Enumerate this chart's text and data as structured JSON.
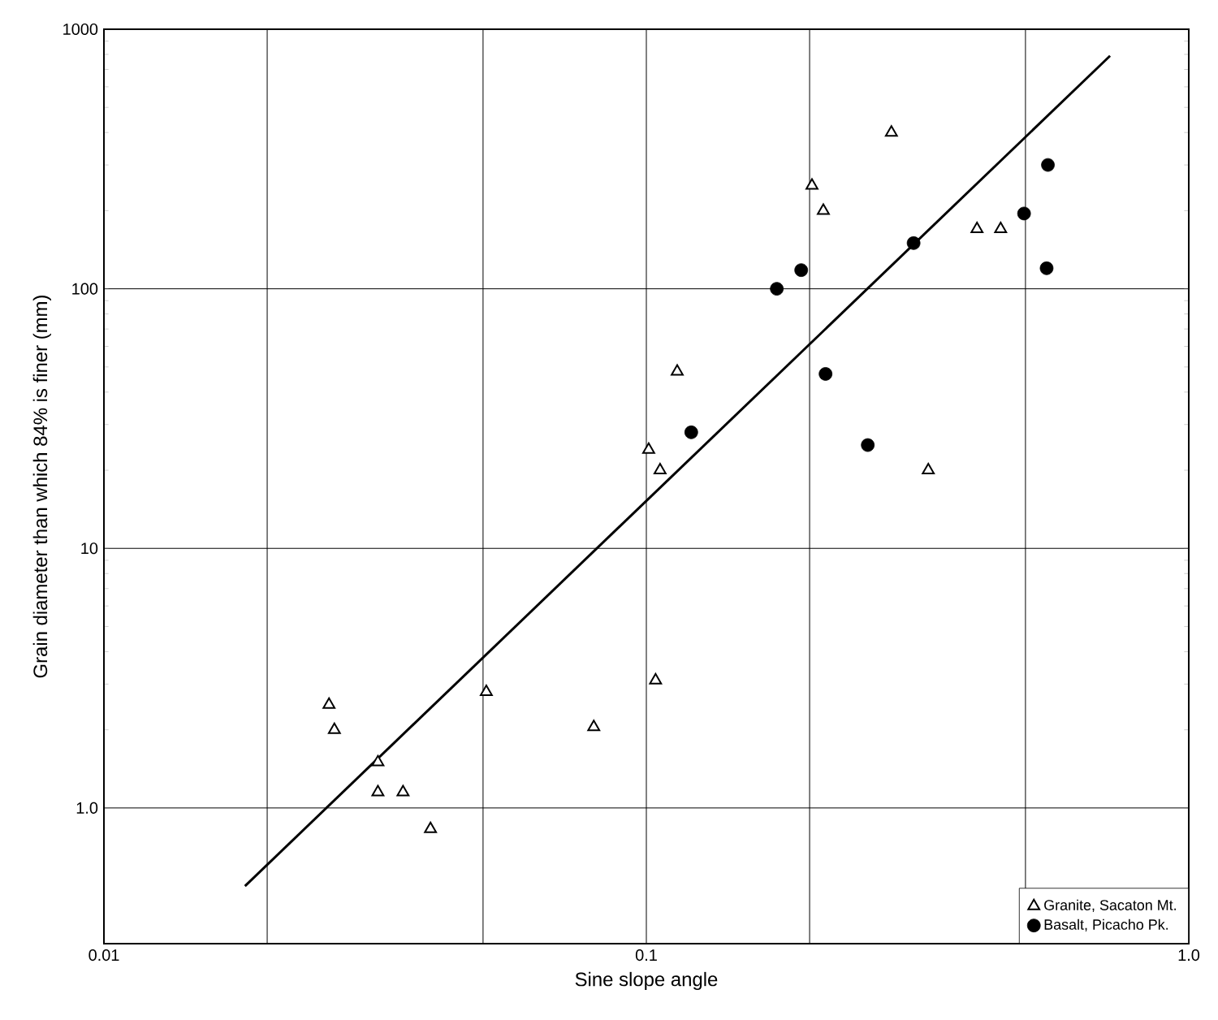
{
  "chart_data": {
    "type": "scatter",
    "xlabel": "Sine slope angle",
    "ylabel": "Grain diameter than which 84% is finer (mm)",
    "log": "xy",
    "grid": true,
    "legend": "bottom right",
    "xlim": [
      0.01,
      1
    ],
    "ylim": [
      0.3,
      1000
    ],
    "xticks": [
      0.01,
      {
        "value": 0.02,
        "label": null
      },
      {
        "value": 0.05,
        "label": null
      },
      0.1,
      {
        "value": 0.2,
        "label": null
      },
      {
        "value": 0.5,
        "label": null
      },
      {
        "value": 1,
        "label": "1.0"
      }
    ],
    "yticks": [
      {
        "value": 1,
        "label": "1.0"
      },
      10,
      100,
      1000
    ],
    "series": [
      {
        "name": "Granite, Sacaton Mt.",
        "color": "#000000",
        "marker": "triangle",
        "x": [
          0.283,
          0.202,
          0.212,
          0.407,
          0.45,
          0.114,
          0.101,
          0.106,
          0.331,
          0.026,
          0.0266,
          0.032,
          0.032,
          0.0356,
          0.04,
          0.0507,
          0.08,
          0.104
        ],
        "values": [
          400,
          250,
          200,
          170,
          170,
          48,
          24,
          20,
          20,
          2.5,
          2.0,
          1.5,
          1.15,
          1.15,
          0.83,
          2.8,
          2.05,
          3.1
        ]
      },
      {
        "name": "Basalt, Picacho Pk.",
        "color": "#000000",
        "marker": "circle",
        "x": [
          0.55,
          0.497,
          0.547,
          0.311,
          0.193,
          0.174,
          0.214,
          0.256,
          0.121
        ],
        "values": [
          300,
          195,
          120,
          150,
          118,
          100,
          47,
          25,
          28
        ]
      },
      {
        "type": "line",
        "color": "#000000",
        "x": [
          0.0182,
          0.716
        ],
        "values": [
          0.5,
          790
        ]
      }
    ]
  }
}
